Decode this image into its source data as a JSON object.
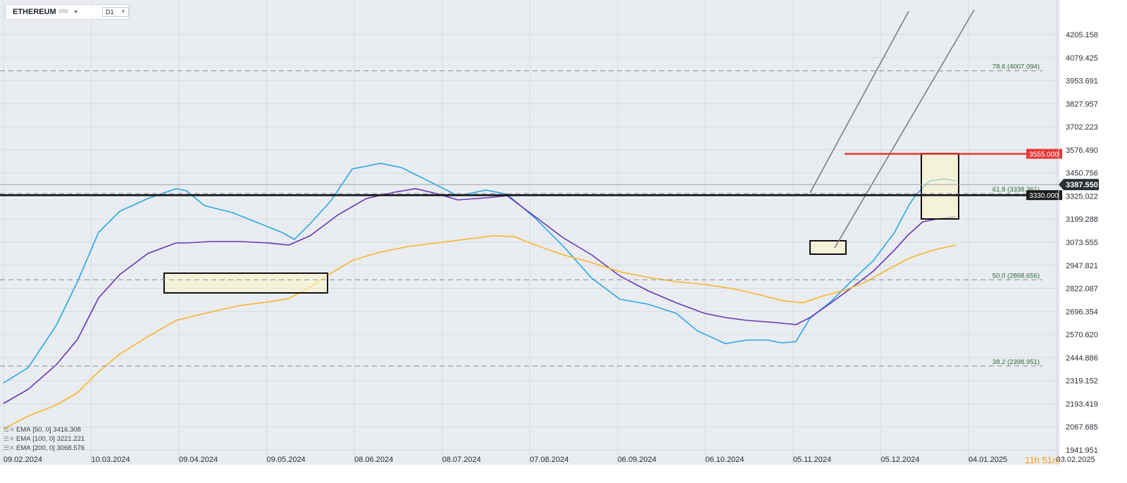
{
  "toolbar": {
    "symbol": "ETHEREUM",
    "instrument_type": "CFD",
    "timeframe": "D1"
  },
  "chart_data": {
    "type": "candlestick",
    "title": "ETHEREUM",
    "ylim": [
      1900,
      4290
    ],
    "y_ticks": [
      4205.158,
      4079.425,
      3953.691,
      3827.957,
      3702.223,
      3576.49,
      3450.756,
      3325.022,
      3199.288,
      3073.555,
      2947.821,
      2822.087,
      2696.354,
      2570.62,
      2444.886,
      2319.152,
      2193.419,
      2067.685,
      1941.951
    ],
    "y_tick_labels": [
      "4205.158",
      "4079.425",
      "3953.691",
      "3827.957",
      "3702.223",
      "3576.490",
      "3450.756",
      "3325.022",
      "3199.288",
      "3073.555",
      "2947.821",
      "2822.087",
      "2696.354",
      "2570.620",
      "2444.886",
      "2319.152",
      "2193.419",
      "2067.685",
      "1941.951"
    ],
    "x_ticks": [
      "09.02.2024",
      "10.03.2024",
      "09.04.2024",
      "09.05.2024",
      "08.06.2024",
      "08.07.2024",
      "07.08.2024",
      "06.09.2024",
      "06.10.2024",
      "05.11.2024",
      "05.12.2024",
      "04.01.2025",
      "03.02.2025"
    ],
    "fib_levels": [
      {
        "label": "78.6 (4007.094)",
        "value": 4007.094
      },
      {
        "label": "61.8 (3338.361)",
        "value": 3338.361
      },
      {
        "label": "50.0 (2868.656)",
        "value": 2868.656
      },
      {
        "label": "38.2 (2398.951)",
        "value": 2398.951
      }
    ],
    "horizontal_lines": [
      {
        "label": "3555.000",
        "value": 3555.0,
        "color": "#e53935"
      },
      {
        "label": "3330.000",
        "value": 3330.0,
        "color": "#111111"
      }
    ],
    "current_price": {
      "label": "3387.550",
      "value": 3387.55
    },
    "indicators": [
      {
        "name": "EMA",
        "params": "[50, 0]",
        "value": "3416.308",
        "color": "#29a8e8"
      },
      {
        "name": "EMA",
        "params": "[100, 0]",
        "value": "3221.221",
        "color": "#6a35b8"
      },
      {
        "name": "EMA",
        "params": "[200, 0]",
        "value": "3068.576",
        "color": "#f7b52c"
      }
    ],
    "countdown": {
      "hours": "11",
      "h_unit": "h",
      "minutes": "51",
      "m_unit": "m"
    },
    "colors": {
      "bull": "#1a8a4e",
      "bear": "#d9303a",
      "background": "#e9ecf0"
    },
    "grid": true
  }
}
